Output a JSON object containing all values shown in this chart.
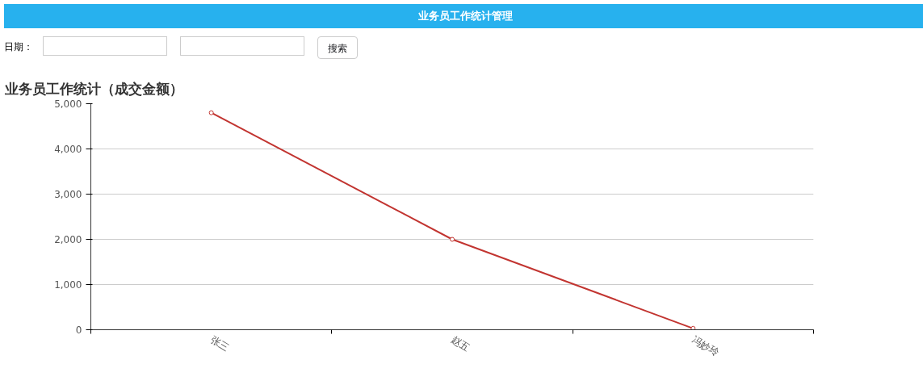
{
  "chart_data": {
    "type": "line",
    "title": "业务员工作统计（成交金额）",
    "annotations": [
      "业务员工作统计管理",
      "日期：",
      "搜索"
    ],
    "categories": [
      "张三",
      "赵五",
      "冯妙玲"
    ],
    "series": [
      {
        "color": "#c23531",
        "values": [
          4800,
          2000,
          30
        ]
      }
    ],
    "ylim": [
      0,
      5000
    ],
    "yticks": [
      {
        "value": 0,
        "label": "0"
      },
      {
        "value": 1000,
        "label": "1,000"
      },
      {
        "value": 2000,
        "label": "2,000"
      },
      {
        "value": 3000,
        "label": "3,000"
      },
      {
        "value": 4000,
        "label": "4,000"
      },
      {
        "value": 5000,
        "label": "5,000"
      }
    ],
    "grid": "y",
    "marker": "circle",
    "line_style": "solid"
  }
}
